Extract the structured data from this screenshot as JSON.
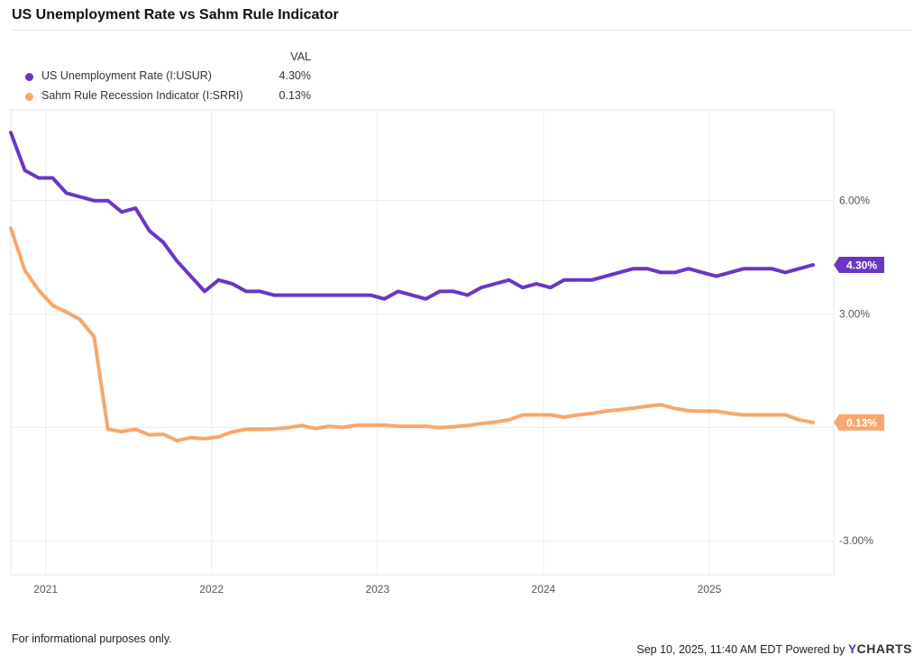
{
  "chart_data": {
    "type": "line",
    "title": "US Unemployment Rate vs Sahm Rule Indicator",
    "legend_header": "VAL",
    "xlabel": "",
    "ylabel": "",
    "ylim": [
      -3.9,
      8.4
    ],
    "y_ticks": [
      6,
      3,
      -3
    ],
    "y_tick_labels": [
      "6.00%",
      "3.00%",
      "-3.00%"
    ],
    "x_range": [
      2020.79,
      2025.75
    ],
    "x_ticks": [
      2021,
      2022,
      2023,
      2024,
      2025
    ],
    "x_tick_labels": [
      "2021",
      "2022",
      "2023",
      "2024",
      "2025"
    ],
    "series": [
      {
        "name": "US Unemployment Rate (I:USUR)",
        "color": "#6b35c6",
        "last_label": "4.30%",
        "x": [
          2020.79,
          2020.875,
          2020.958,
          2021.042,
          2021.125,
          2021.208,
          2021.292,
          2021.375,
          2021.458,
          2021.542,
          2021.625,
          2021.708,
          2021.792,
          2021.875,
          2021.958,
          2022.042,
          2022.125,
          2022.208,
          2022.292,
          2022.375,
          2022.458,
          2022.542,
          2022.625,
          2022.708,
          2022.792,
          2022.875,
          2022.958,
          2023.042,
          2023.125,
          2023.208,
          2023.292,
          2023.375,
          2023.458,
          2023.542,
          2023.625,
          2023.708,
          2023.792,
          2023.875,
          2023.958,
          2024.042,
          2024.125,
          2024.208,
          2024.292,
          2024.375,
          2024.458,
          2024.542,
          2024.625,
          2024.708,
          2024.792,
          2024.875,
          2024.958,
          2025.042,
          2025.125,
          2025.208,
          2025.292,
          2025.375,
          2025.458,
          2025.542,
          2025.625
        ],
        "values": [
          7.8,
          6.8,
          6.6,
          6.6,
          6.2,
          6.1,
          6.0,
          6.0,
          5.7,
          5.8,
          5.2,
          4.9,
          4.4,
          4.0,
          3.6,
          3.9,
          3.8,
          3.6,
          3.6,
          3.5,
          3.5,
          3.5,
          3.5,
          3.5,
          3.5,
          3.5,
          3.5,
          3.4,
          3.6,
          3.5,
          3.4,
          3.6,
          3.6,
          3.5,
          3.7,
          3.8,
          3.9,
          3.7,
          3.8,
          3.7,
          3.9,
          3.9,
          3.9,
          4.0,
          4.1,
          4.2,
          4.2,
          4.1,
          4.1,
          4.2,
          4.1,
          4.0,
          4.1,
          4.2,
          4.2,
          4.2,
          4.1,
          4.2,
          4.3
        ]
      },
      {
        "name": "Sahm Rule Recession Indicator (I:SRRI)",
        "color": "#f8a66b",
        "last_label": "0.13%",
        "x": [
          2020.79,
          2020.875,
          2020.958,
          2021.042,
          2021.125,
          2021.208,
          2021.292,
          2021.375,
          2021.458,
          2021.542,
          2021.625,
          2021.708,
          2021.792,
          2021.875,
          2021.958,
          2022.042,
          2022.125,
          2022.208,
          2022.292,
          2022.375,
          2022.458,
          2022.542,
          2022.625,
          2022.708,
          2022.792,
          2022.875,
          2022.958,
          2023.042,
          2023.125,
          2023.208,
          2023.292,
          2023.375,
          2023.458,
          2023.542,
          2023.625,
          2023.708,
          2023.792,
          2023.875,
          2023.958,
          2024.042,
          2024.125,
          2024.208,
          2024.292,
          2024.375,
          2024.458,
          2024.542,
          2024.625,
          2024.708,
          2024.792,
          2024.875,
          2024.958,
          2025.042,
          2025.125,
          2025.208,
          2025.292,
          2025.375,
          2025.458,
          2025.542,
          2025.625
        ],
        "values": [
          5.27,
          4.15,
          3.63,
          3.23,
          3.05,
          2.85,
          2.4,
          -0.05,
          -0.11,
          -0.05,
          -0.2,
          -0.18,
          -0.35,
          -0.27,
          -0.3,
          -0.25,
          -0.12,
          -0.05,
          -0.05,
          -0.04,
          -0.01,
          0.05,
          -0.03,
          0.03,
          0.0,
          0.06,
          0.06,
          0.06,
          0.03,
          0.03,
          0.03,
          -0.01,
          0.02,
          0.05,
          0.1,
          0.14,
          0.2,
          0.33,
          0.33,
          0.33,
          0.27,
          0.33,
          0.37,
          0.43,
          0.47,
          0.51,
          0.56,
          0.6,
          0.5,
          0.44,
          0.43,
          0.43,
          0.37,
          0.33,
          0.33,
          0.33,
          0.33,
          0.2,
          0.13
        ]
      }
    ]
  },
  "footer": {
    "note": "For informational purposes only.",
    "timestamp": "Sep 10, 2025, 11:40 AM EDT Powered by",
    "brand_y": "Y",
    "brand_rest": "CHARTS"
  }
}
